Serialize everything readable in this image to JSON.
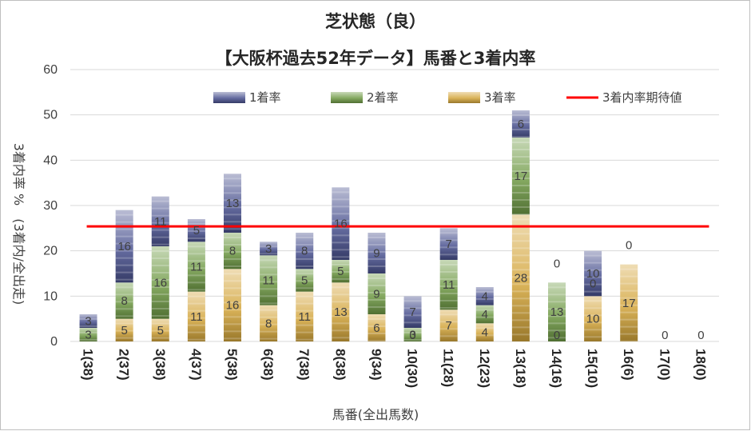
{
  "chart_data": {
    "type": "bar",
    "stacked": true,
    "title": "芝状態（良）",
    "subtitle": "【大阪杯過去52年データ】馬番と3着内率",
    "xlabel": "馬番(全出馬数)",
    "ylabel": "3着内率 %　(3着内/全出走)",
    "ylim": [
      0,
      60
    ],
    "yticks": [
      0,
      10,
      20,
      30,
      40,
      50,
      60
    ],
    "categories": [
      "1(38)",
      "2(37)",
      "3(38)",
      "4(37)",
      "5(38)",
      "6(38)",
      "7(38)",
      "8(38)",
      "9(34)",
      "10(30)",
      "11(28)",
      "12(23)",
      "13(18)",
      "14(16)",
      "15(10)",
      "16(6)",
      "17(0)",
      "18(0)"
    ],
    "series": [
      {
        "name": "3着率",
        "color": "#d4a63c",
        "values": [
          0,
          5,
          5,
          11,
          16,
          8,
          11,
          13,
          6,
          0,
          7,
          4,
          28,
          0,
          10,
          17,
          0,
          0
        ],
        "labels": [
          "",
          "5",
          "5",
          "11",
          "16",
          "8",
          "11",
          "13",
          "6",
          "0",
          "7",
          "4",
          "28",
          "0",
          "10",
          "17",
          "0",
          "0"
        ]
      },
      {
        "name": "2着率",
        "color": "#6f9a45",
        "values": [
          3,
          8,
          16,
          11,
          8,
          11,
          5,
          5,
          9,
          3,
          11,
          4,
          17,
          13,
          0,
          0,
          0,
          0
        ],
        "labels": [
          "3",
          "8",
          "16",
          "11",
          "8",
          "11",
          "5",
          "5",
          "9",
          "3",
          "11",
          "4",
          "17",
          "13",
          "0",
          "",
          "",
          ""
        ]
      },
      {
        "name": "1着率",
        "color": "#4a528f",
        "values": [
          3,
          16,
          11,
          5,
          13,
          3,
          8,
          16,
          9,
          7,
          7,
          4,
          6,
          0,
          10,
          0,
          0,
          0
        ],
        "labels": [
          "3",
          "16",
          "11",
          "5",
          "13",
          "3",
          "8",
          "16",
          "9",
          "7",
          "7",
          "4",
          "6",
          "0",
          "10",
          "0",
          "",
          ""
        ]
      }
    ],
    "expected": {
      "name": "3着内率期待値",
      "value": 25.4,
      "color": "#ff0000"
    },
    "legend": [
      "1着率",
      "2着率",
      "3着率",
      "3着内率期待値"
    ],
    "legend_position": "top"
  }
}
